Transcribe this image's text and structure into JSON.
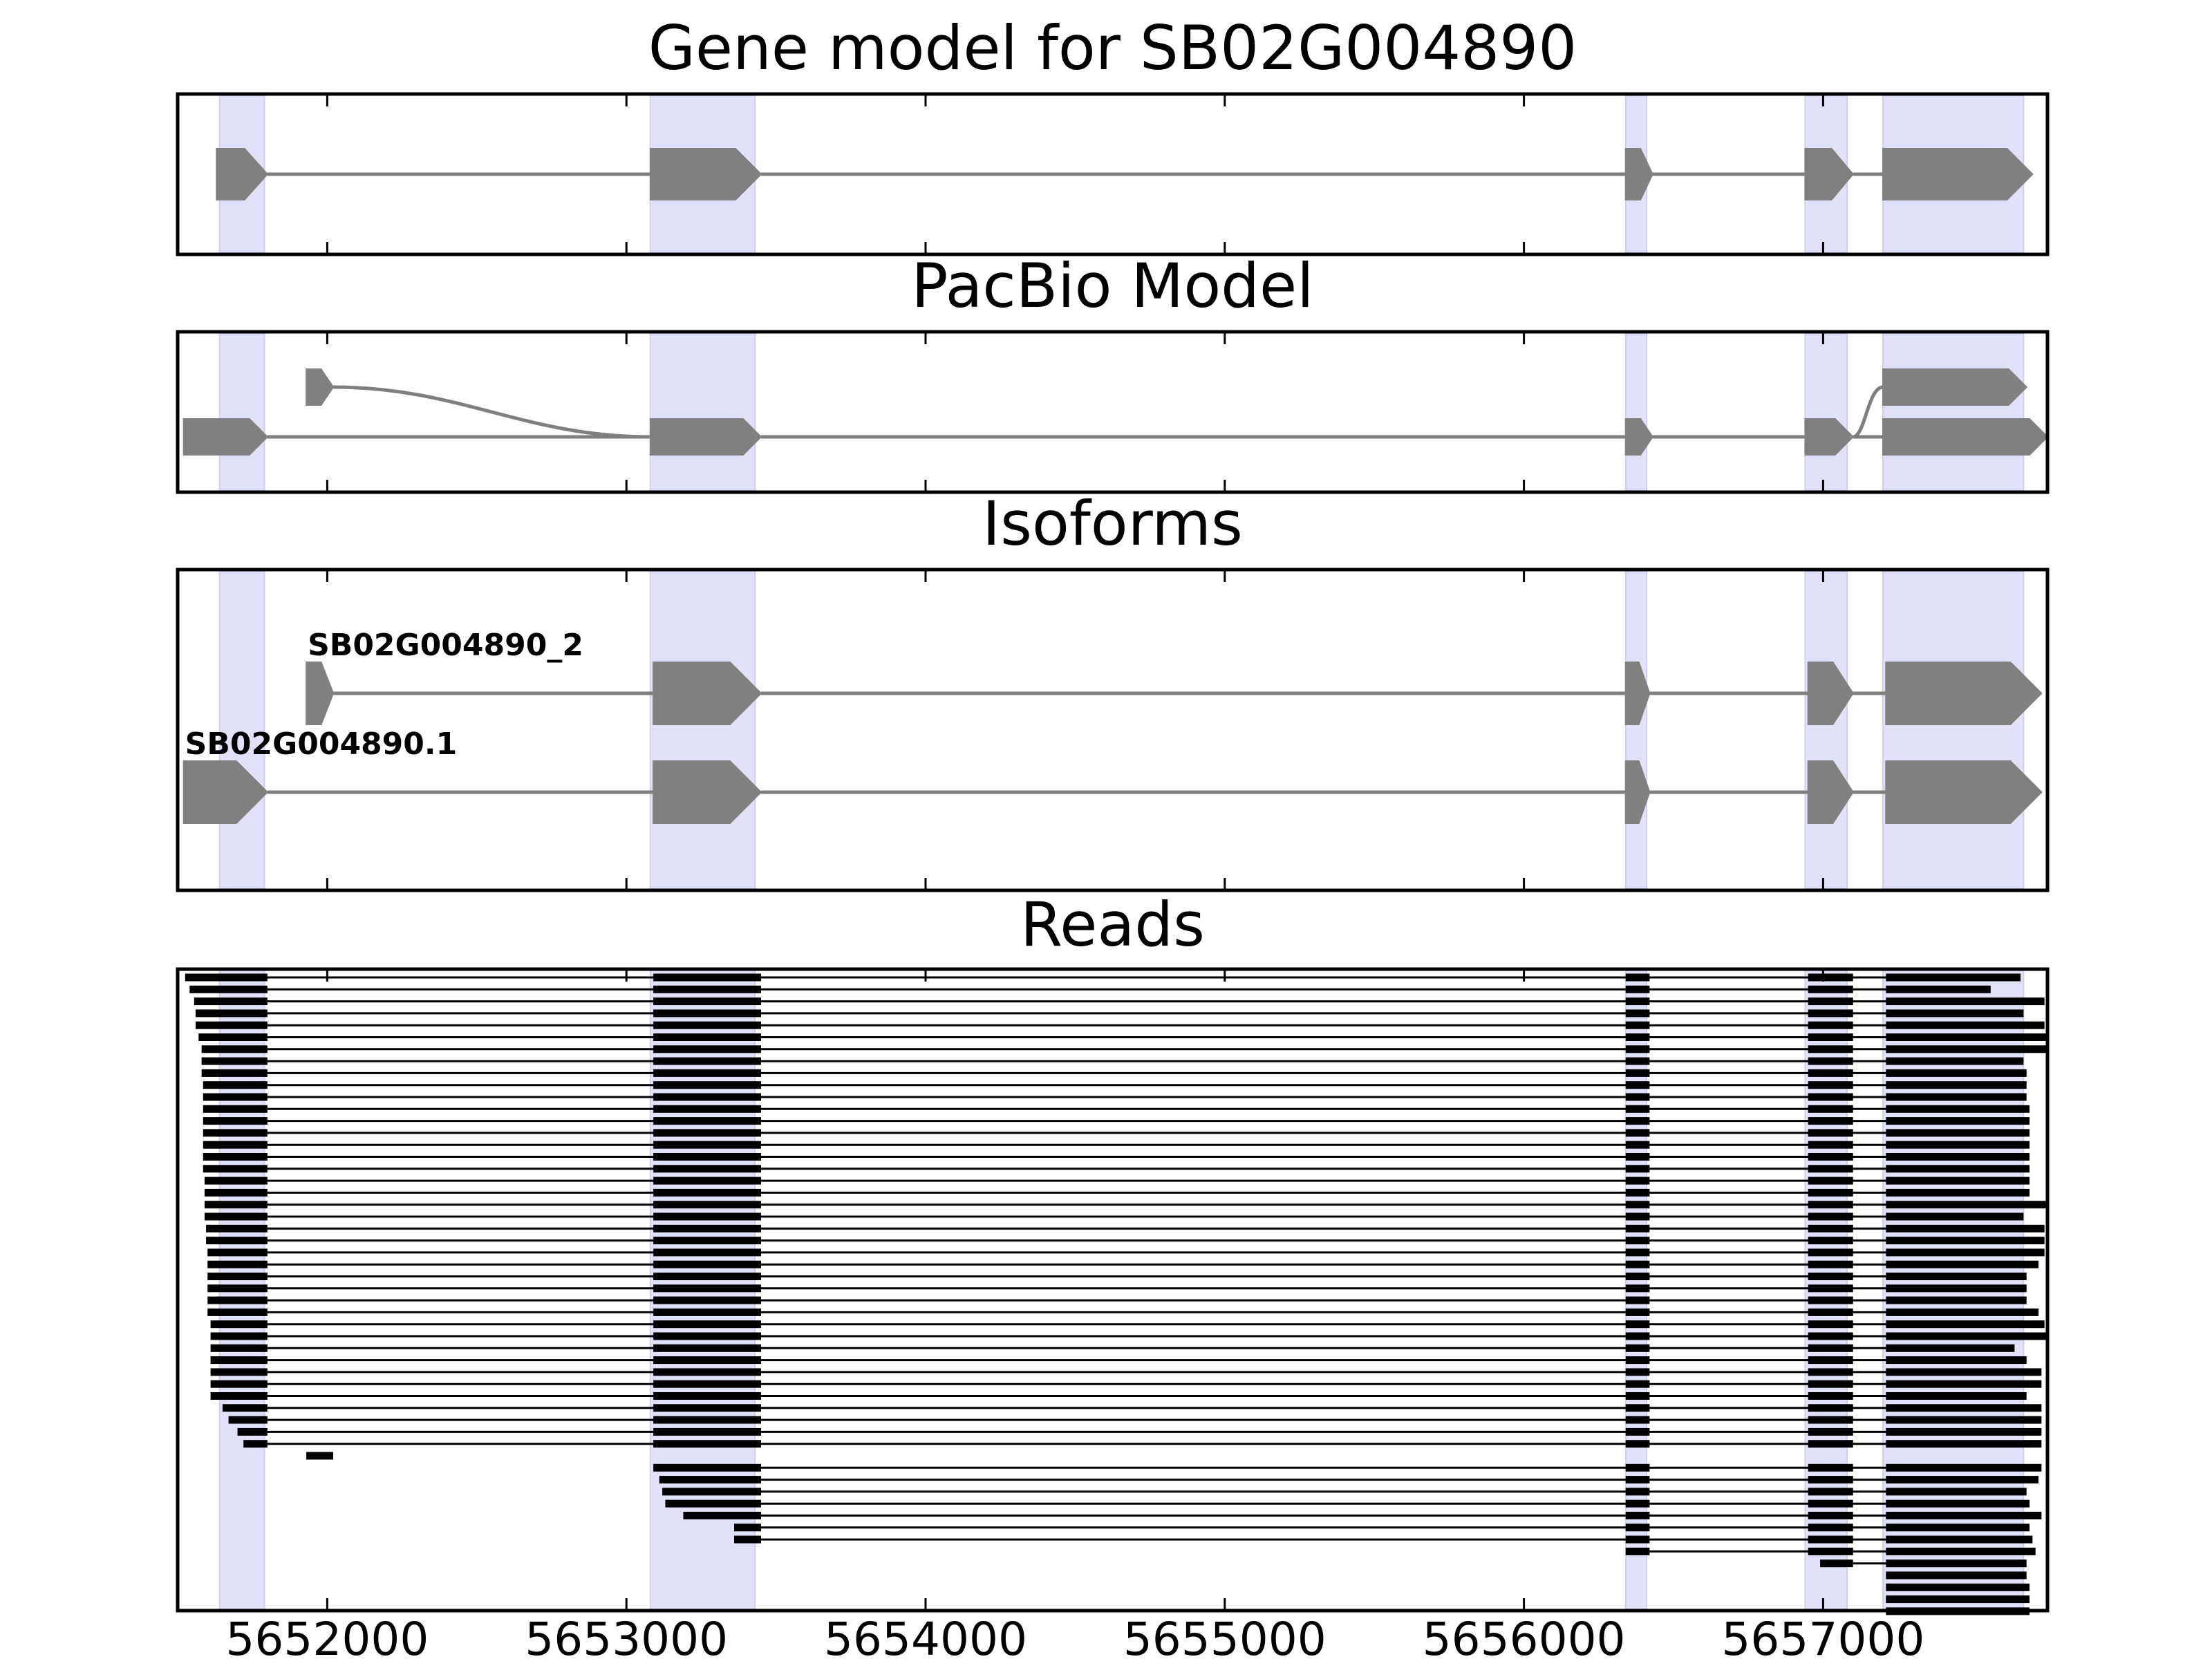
{
  "chart_data": {
    "type": "gene-structure",
    "xlim": [
      5651500,
      5657750
    ],
    "colors": {
      "exon_fill": "#808080",
      "intron_line": "#7f7f7f",
      "highlight": "#e1e1fa",
      "read": "#000000",
      "axis": "#000000"
    },
    "x_ticks": [
      5652000,
      5653000,
      5654000,
      5655000,
      5656000,
      5657000
    ],
    "x_tick_labels": [
      "5652000",
      "5653000",
      "5654000",
      "5655000",
      "5656000",
      "5657000"
    ],
    "highlight_regions": [
      [
        5651640,
        5651790
      ],
      [
        5653080,
        5653430
      ],
      [
        5656340,
        5656410
      ],
      [
        5656940,
        5657080
      ],
      [
        5657200,
        5657670
      ]
    ],
    "panels": [
      {
        "name": "gene-model",
        "title": "Gene model for SB02G004890",
        "transcripts": [
          {
            "label": "",
            "row": 0,
            "exons": [
              [
                5651630,
                5651800
              ],
              [
                5653080,
                5653450
              ],
              [
                5656340,
                5656430
              ],
              [
                5656940,
                5657100
              ],
              [
                5657200,
                5657700
              ]
            ]
          }
        ]
      },
      {
        "name": "pacbio-model",
        "title": "PacBio Model",
        "transcripts": [
          {
            "label": "",
            "row": 1,
            "exons": [
              [
                5651520,
                5651800
              ],
              [
                5653080,
                5653450
              ],
              [
                5656340,
                5656430
              ],
              [
                5656940,
                5657100
              ],
              [
                5657200,
                5657750
              ]
            ]
          },
          {
            "label": "",
            "row": 0,
            "exons": [
              [
                5651930,
                5652020
              ],
              [
                5653080,
                5653450
              ],
              [
                5656340,
                5656430
              ],
              [
                5656940,
                5657100
              ],
              [
                5657200,
                5657680
              ]
            ],
            "curve_start": true,
            "curve_end": true
          }
        ]
      },
      {
        "name": "isoforms",
        "title": "Isoforms",
        "transcripts": [
          {
            "label": "SB02G004890_2",
            "row": 0,
            "exons": [
              [
                5651930,
                5652020
              ],
              [
                5653090,
                5653450
              ],
              [
                5656340,
                5656420
              ],
              [
                5656950,
                5657100
              ],
              [
                5657210,
                5657730
              ]
            ]
          },
          {
            "label": "SB02G004890.1",
            "row": 1,
            "exons": [
              [
                5651520,
                5651800
              ],
              [
                5653090,
                5653450
              ],
              [
                5656340,
                5656420
              ],
              [
                5656950,
                5657100
              ],
              [
                5657210,
                5657730
              ]
            ]
          }
        ]
      },
      {
        "name": "reads",
        "title": "Reads",
        "transcripts": []
      }
    ],
    "reads": {
      "first_exon_starts": [
        5651525,
        5651540,
        5651555,
        5651560,
        5651560,
        5651570,
        5651580,
        5651580,
        5651580,
        5651585,
        5651585,
        5651585,
        5651585,
        5651585,
        5651585,
        5651585,
        5651585,
        5651590,
        5651590,
        5651590,
        5651590,
        5651595,
        5651595,
        5651600,
        5651600,
        5651600,
        5651600,
        5651600,
        5651600,
        5651610,
        5651610,
        5651610,
        5651610,
        5651610,
        5651610,
        5651610,
        5651650,
        5651670,
        5651700,
        5651720
      ],
      "last_exon_ends": [
        5657660,
        5657560,
        5657740,
        5657670,
        5657740,
        5657750,
        5657750,
        5657670,
        5657680,
        5657680,
        5657680,
        5657690,
        5657690,
        5657690,
        5657690,
        5657690,
        5657690,
        5657690,
        5657690,
        5657750,
        5657670,
        5657740,
        5657740,
        5657740,
        5657720,
        5657680,
        5657680,
        5657680,
        5657720,
        5657740,
        5657750,
        5657640,
        5657680,
        5657730,
        5657730,
        5657680,
        5657730,
        5657730,
        5657730,
        5657730
      ],
      "short_reads": [
        {
          "exons": [
            [
              5651930,
              5652020
            ]
          ]
        },
        {
          "exons": [
            [
              5653090,
              5653450
            ],
            [
              5656340,
              5656420
            ],
            [
              5656950,
              5657100
            ],
            [
              5657210,
              5657730
            ]
          ]
        },
        {
          "exons": [
            [
              5653110,
              5653450
            ],
            [
              5656340,
              5656420
            ],
            [
              5656950,
              5657100
            ],
            [
              5657210,
              5657720
            ]
          ]
        },
        {
          "exons": [
            [
              5653120,
              5653450
            ],
            [
              5656340,
              5656420
            ],
            [
              5656950,
              5657100
            ],
            [
              5657210,
              5657680
            ]
          ]
        },
        {
          "exons": [
            [
              5653130,
              5653450
            ],
            [
              5656340,
              5656420
            ],
            [
              5656950,
              5657100
            ],
            [
              5657210,
              5657690
            ]
          ]
        },
        {
          "exons": [
            [
              5653190,
              5653450
            ],
            [
              5656340,
              5656420
            ],
            [
              5656950,
              5657100
            ],
            [
              5657210,
              5657730
            ]
          ]
        },
        {
          "exons": [
            [
              5653360,
              5653450
            ],
            [
              5656340,
              5656420
            ],
            [
              5656950,
              5657100
            ],
            [
              5657210,
              5657690
            ]
          ]
        },
        {
          "exons": [
            [
              5653360,
              5653450
            ],
            [
              5656340,
              5656420
            ],
            [
              5656950,
              5657100
            ],
            [
              5657210,
              5657700
            ]
          ]
        },
        {
          "exons": [
            [
              5656340,
              5656420
            ],
            [
              5656950,
              5657100
            ],
            [
              5657210,
              5657710
            ]
          ]
        },
        {
          "exons": [
            [
              5656990,
              5657100
            ],
            [
              5657210,
              5657680
            ]
          ]
        },
        {
          "exons": [
            [
              5657210,
              5657680
            ]
          ]
        },
        {
          "exons": [
            [
              5657210,
              5657690
            ]
          ]
        },
        {
          "exons": [
            [
              5657210,
              5657690
            ]
          ]
        },
        {
          "exons": [
            [
              5657210,
              5657690
            ]
          ]
        }
      ]
    }
  }
}
